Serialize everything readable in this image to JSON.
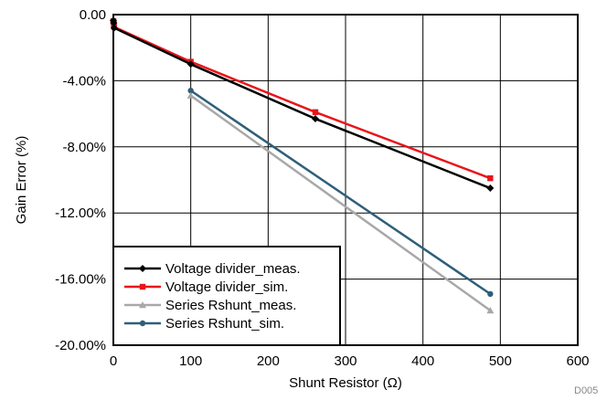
{
  "chart_data": {
    "type": "line",
    "title": "",
    "xlabel": "Shunt Resistor (Ω)",
    "ylabel": "Gain Error (%)",
    "xlim": [
      0,
      600
    ],
    "ylim": [
      -20,
      0
    ],
    "x_ticks": [
      0,
      100,
      200,
      300,
      400,
      500,
      600
    ],
    "x_tick_labels": [
      "0",
      "100",
      "200",
      "300",
      "400",
      "500",
      "600"
    ],
    "y_ticks": [
      0,
      -4,
      -8,
      -12,
      -16,
      -20
    ],
    "y_tick_labels": [
      "0.00",
      "-4.00%",
      "-8.00%",
      "-12.00%",
      "-16.00%",
      "-20.00%"
    ],
    "grid": true,
    "legend_position": "bottom-left",
    "series": [
      {
        "name": "Voltage divider_meas.",
        "color": "#000000",
        "marker": "diamond",
        "points": [
          [
            0,
            -0.35
          ],
          [
            0.5,
            -0.5
          ],
          [
            1,
            -0.8
          ],
          [
            100,
            -3.0
          ],
          [
            261,
            -6.3
          ],
          [
            487,
            -10.5
          ]
        ]
      },
      {
        "name": "Voltage divider_sim.",
        "color": "#e8141c",
        "marker": "square",
        "points": [
          [
            0,
            -0.4
          ],
          [
            0.5,
            -0.55
          ],
          [
            1,
            -0.75
          ],
          [
            100,
            -2.85
          ],
          [
            261,
            -5.9
          ],
          [
            487,
            -9.9
          ]
        ]
      },
      {
        "name": "Series Rshunt_meas.",
        "color": "#a8a8a8",
        "marker": "triangle",
        "points": [
          [
            100,
            -4.9
          ],
          [
            487,
            -17.9
          ]
        ]
      },
      {
        "name": "Series Rshunt_sim.",
        "color": "#2e5f7a",
        "marker": "circle",
        "points": [
          [
            100,
            -4.6
          ],
          [
            487,
            -16.9
          ]
        ]
      }
    ],
    "footnote": "D005"
  }
}
